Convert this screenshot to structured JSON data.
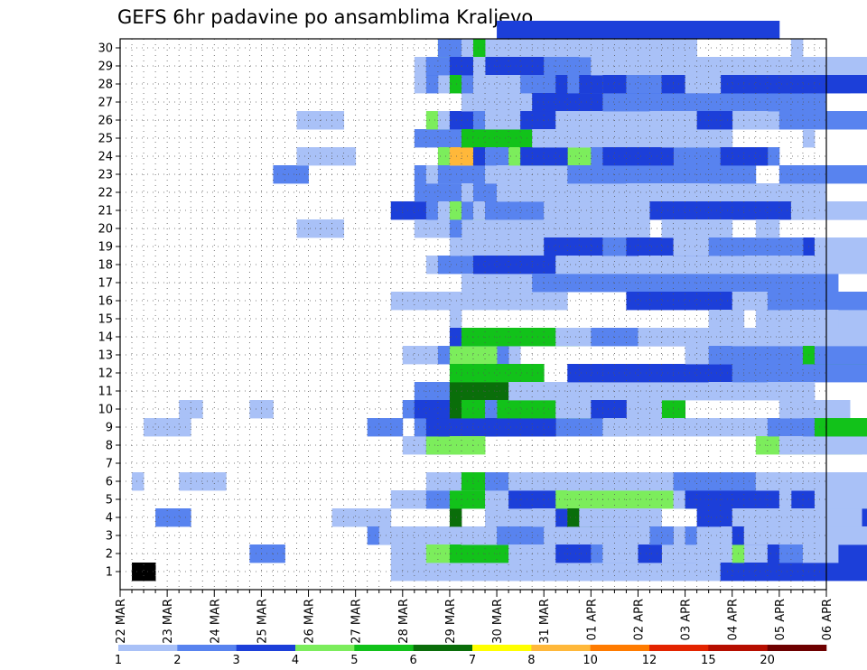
{
  "chart_data": {
    "type": "heatmap",
    "title": "GEFS 6hr padavine po ansamblima Kraljevo",
    "xlabel": "",
    "ylabel": "",
    "x_tick_labels": [
      "22 MAR",
      "23 MAR",
      "24 MAR",
      "25 MAR",
      "26 MAR",
      "27 MAR",
      "28 MAR",
      "29 MAR",
      "30 MAR",
      "31 MAR",
      "01 APR",
      "02 APR",
      "03 APR",
      "04 APR",
      "05 APR",
      "06 APR"
    ],
    "y_tick_labels": [
      "1",
      "2",
      "3",
      "4",
      "5",
      "6",
      "7",
      "8",
      "9",
      "10",
      "11",
      "12",
      "13",
      "14",
      "15",
      "16",
      "17",
      "18",
      "19",
      "20",
      "21",
      "22",
      "23",
      "24",
      "25",
      "26",
      "27",
      "28",
      "29",
      "30"
    ],
    "xlim": [
      0,
      60
    ],
    "ylim": [
      0,
      30.5
    ],
    "steps_per_day": 4,
    "grid": true,
    "colorbar": {
      "labels": [
        "1",
        "2",
        "3",
        "4",
        "5",
        "6",
        "7",
        "8",
        "10",
        "12",
        "15",
        "20"
      ],
      "colors": [
        "#a9c1f7",
        "#5883ef",
        "#1c3fd9",
        "#7ced5c",
        "#12c21a",
        "#0a6e0a",
        "#ffff00",
        "#ffb83a",
        "#ff7b00",
        "#e32400",
        "#b60e00",
        "#6e0000"
      ]
    },
    "cells": [
      [
        0,
        1,
        1,
        2
      ],
      [
        1,
        6,
        1,
        1
      ],
      [
        1,
        9,
        2,
        4
      ],
      [
        1,
        10,
        5,
        2
      ],
      [
        2,
        4,
        3,
        3
      ],
      [
        1,
        6,
        5,
        4
      ],
      [
        1,
        10,
        11,
        2
      ],
      [
        2,
        2,
        11,
        3
      ],
      [
        2,
        23,
        13,
        3
      ],
      [
        1,
        20,
        15,
        4
      ],
      [
        1,
        24,
        15,
        5
      ],
      [
        1,
        26,
        15,
        4
      ],
      [
        1,
        26,
        16,
        3
      ],
      [
        1,
        4,
        18,
        4
      ],
      [
        1,
        4,
        19,
        4
      ],
      [
        2,
        3,
        21,
        6
      ],
      [
        2,
        9,
        21,
        3
      ],
      [
        1,
        3,
        22,
        8
      ],
      [
        1,
        2,
        23,
        10
      ],
      [
        1,
        5,
        23,
        13
      ],
      [
        1,
        16,
        23,
        15
      ],
      [
        3,
        21,
        23,
        16
      ],
      [
        1,
        1,
        23,
        18
      ],
      [
        1,
        8,
        24,
        2
      ],
      [
        2,
        10,
        24,
        7
      ],
      [
        1,
        13,
        24,
        10
      ],
      [
        1,
        29,
        25,
        7
      ],
      [
        1,
        28,
        25,
        10
      ],
      [
        2,
        25,
        25,
        11
      ],
      [
        2,
        23,
        25,
        12
      ],
      [
        1,
        20,
        25,
        14
      ],
      [
        2,
        9,
        25,
        18
      ],
      [
        2,
        11,
        25,
        19
      ],
      [
        2,
        22,
        25,
        20
      ],
      [
        3,
        10,
        25,
        21
      ],
      [
        2,
        28,
        26,
        1
      ],
      [
        3,
        29,
        26,
        1
      ],
      [
        2,
        5,
        26,
        2
      ],
      [
        4,
        2,
        26,
        3
      ],
      [
        3,
        8,
        26,
        3
      ],
      [
        4,
        8,
        26,
        4
      ],
      [
        3,
        9,
        26,
        4
      ],
      [
        4,
        26,
        26,
        6
      ],
      [
        3,
        21,
        26,
        7
      ],
      [
        1,
        18,
        26,
        8
      ],
      [
        1,
        6,
        26,
        10
      ],
      [
        1,
        23,
        26,
        11
      ],
      [
        2,
        21,
        26,
        13
      ],
      [
        2,
        29,
        26,
        13
      ],
      [
        2,
        18,
        27,
        4
      ],
      [
        1,
        26,
        27,
        5
      ],
      [
        2,
        13,
        27,
        6
      ],
      [
        4,
        24,
        27,
        6
      ],
      [
        4,
        30,
        27,
        7
      ],
      [
        2,
        30,
        27,
        8
      ],
      [
        3,
        9,
        27,
        10
      ],
      [
        1,
        20,
        27,
        11
      ],
      [
        2,
        23,
        27,
        13
      ],
      [
        3,
        10,
        27,
        14
      ],
      [
        1,
        21,
        27,
        15
      ],
      [
        6,
        4,
        28,
        1
      ],
      [
        1,
        15,
        28,
        1
      ],
      [
        6,
        10,
        28,
        1
      ],
      [
        2,
        20,
        28,
        1
      ],
      [
        1,
        28,
        28,
        1
      ],
      [
        3,
        29,
        28,
        1
      ],
      [
        1,
        24,
        28,
        2
      ],
      [
        4,
        8,
        28,
        3
      ],
      [
        4,
        13,
        28,
        4
      ],
      [
        5,
        5,
        28,
        5
      ],
      [
        3,
        14,
        28,
        5
      ],
      [
        4,
        21,
        28,
        6
      ],
      [
        5,
        28,
        28,
        6
      ],
      [
        3,
        26,
        28,
        7
      ],
      [
        5,
        2,
        28,
        8
      ],
      [
        1,
        6,
        28,
        8
      ],
      [
        6,
        11,
        28,
        8
      ],
      [
        5,
        12,
        28,
        8
      ],
      [
        1,
        19,
        28,
        8
      ],
      [
        8,
        24,
        28,
        8
      ],
      [
        1,
        3,
        29,
        11
      ],
      [
        2,
        14,
        29,
        12
      ],
      [
        1,
        27,
        29,
        12
      ],
      [
        1,
        30,
        29,
        12
      ],
      [
        2,
        28,
        29,
        13
      ],
      [
        3,
        29,
        29,
        13
      ],
      [
        5,
        6,
        29,
        15
      ],
      [
        1,
        17,
        29,
        15
      ],
      [
        3,
        22,
        29,
        16
      ],
      [
        5,
        25,
        29,
        18
      ],
      [
        5,
        10,
        29,
        19
      ],
      [
        5,
        14,
        29,
        20
      ],
      [
        1,
        3,
        29,
        22
      ],
      [
        2,
        21,
        29,
        22
      ],
      [
        1,
        22,
        29,
        22
      ],
      [
        5,
        30,
        30,
        1
      ],
      [
        1,
        29,
        30,
        1
      ],
      [
        1,
        28,
        30,
        3
      ],
      [
        1,
        27,
        30,
        9
      ],
      [
        7,
        21,
        30,
        12
      ],
      [
        4,
        21,
        30,
        14
      ],
      [
        3,
        18,
        30,
        14
      ],
      [
        2,
        26,
        30,
        17
      ],
      [
        2,
        22,
        30,
        20
      ],
      [
        1,
        28,
        30,
        20
      ],
      [
        1,
        21,
        30,
        22
      ],
      [
        3,
        24,
        30,
        25
      ],
      [
        2,
        10,
        31,
        1
      ],
      [
        3,
        9,
        31,
        1
      ],
      [
        2,
        21,
        31,
        4
      ],
      [
        1,
        24,
        31,
        4
      ],
      [
        1,
        3,
        31,
        5
      ],
      [
        1,
        4,
        31,
        7
      ],
      [
        1,
        5,
        31,
        8
      ],
      [
        2,
        6,
        31,
        9
      ],
      [
        1,
        23,
        31,
        11
      ],
      [
        2,
        21,
        31,
        12
      ],
      [
        1,
        26,
        31,
        12
      ],
      [
        2,
        24,
        31,
        15
      ],
      [
        1,
        28,
        31,
        16
      ],
      [
        1,
        5,
        32,
        10
      ],
      [
        2,
        6,
        32,
        11
      ],
      [
        2,
        3,
        32,
        11
      ],
      [
        3,
        29,
        32,
        14
      ],
      [
        1,
        22,
        32,
        16
      ],
      [
        1,
        23,
        32,
        17
      ],
      [
        1,
        28,
        32,
        18
      ],
      [
        3,
        31,
        32,
        24
      ],
      [
        4,
        6,
        33,
        9
      ],
      [
        3,
        5,
        33,
        12
      ],
      [
        4,
        24,
        33,
        16
      ],
      [
        1,
        28,
        33,
        20
      ],
      [
        1,
        2,
        33,
        21
      ],
      [
        1,
        6,
        33,
        22
      ],
      [
        1,
        11,
        33,
        25
      ],
      [
        1,
        1,
        33,
        26
      ],
      [
        3,
        24,
        34,
        4
      ],
      [
        1,
        27,
        34,
        5
      ],
      [
        2,
        28,
        34,
        9
      ],
      [
        3,
        26,
        34,
        12
      ],
      [
        3,
        27,
        35,
        9
      ],
      [
        1,
        4,
        35,
        10
      ],
      [
        1,
        25,
        35,
        17
      ],
      [
        2,
        17,
        35,
        26
      ],
      [
        1,
        20,
        36,
        9
      ],
      [
        1,
        3,
        36,
        14
      ],
      [
        1,
        21,
        36,
        22
      ],
      [
        1,
        22,
        36,
        24
      ],
      [
        2,
        29,
        36,
        26
      ],
      [
        3,
        19,
        36,
        26
      ],
      [
        3,
        2,
        37,
        4
      ],
      [
        1,
        10,
        37,
        9
      ],
      [
        3,
        4,
        37,
        7
      ],
      [
        4,
        5,
        37,
        18
      ],
      [
        3,
        28,
        37,
        22
      ],
      [
        1,
        26,
        37,
        26
      ],
      [
        1,
        14,
        37,
        26
      ],
      [
        1,
        18,
        37,
        30
      ],
      [
        6,
        4,
        38,
        4
      ],
      [
        2,
        28,
        38,
        6
      ],
      [
        1,
        25,
        38,
        9
      ],
      [
        3,
        12,
        38,
        14
      ],
      [
        2,
        23,
        38,
        16
      ],
      [
        1,
        26,
        38,
        25
      ],
      [
        1,
        6,
        38,
        13
      ],
      [
        1,
        30,
        39,
        10
      ],
      [
        1,
        4,
        39,
        7
      ],
      [
        1,
        14,
        39,
        10
      ],
      [
        3,
        28,
        39,
        19
      ],
      [
        3,
        10,
        40,
        3
      ],
      [
        1,
        1,
        40,
        6
      ],
      [
        2,
        2,
        40,
        13
      ],
      [
        2,
        24,
        40,
        16
      ],
      [
        2,
        14,
        40,
        23
      ],
      [
        1,
        26,
        40,
        26
      ],
      [
        1,
        29,
        40,
        30
      ],
      [
        1,
        25,
        41,
        4
      ],
      [
        3,
        24,
        41,
        6
      ],
      [
        1,
        9,
        41,
        16
      ],
      [
        1,
        2,
        41,
        16
      ],
      [
        2,
        19,
        41,
        17
      ],
      [
        2,
        27,
        41,
        19
      ],
      [
        2,
        28,
        41,
        21
      ],
      [
        3,
        28,
        41,
        24
      ],
      [
        2,
        28,
        43,
        5
      ],
      [
        1,
        22,
        43,
        7
      ],
      [
        3,
        19,
        43,
        9
      ],
      [
        3,
        16,
        43,
        15
      ],
      [
        3,
        14,
        44,
        13
      ],
      [
        3,
        2,
        44,
        2
      ],
      [
        1,
        10,
        44,
        1
      ],
      [
        1,
        18,
        44,
        3
      ],
      [
        1,
        14,
        44,
        15
      ],
      [
        3,
        21,
        45,
        20
      ],
      [
        2,
        3,
        45,
        2
      ],
      [
        1,
        26,
        45,
        10
      ],
      [
        1,
        20,
        46,
        6
      ],
      [
        3,
        28,
        46,
        12
      ],
      [
        1,
        25,
        46,
        6
      ],
      [
        1,
        19,
        47,
        6
      ],
      [
        1,
        5,
        47,
        7
      ],
      [
        2,
        6,
        47,
        9
      ],
      [
        1,
        3,
        48,
        18
      ],
      [
        4,
        5,
        48,
        21
      ],
      [
        1,
        28,
        48,
        3
      ],
      [
        1,
        3,
        48,
        22
      ],
      [
        2,
        3,
        48,
        24
      ],
      [
        1,
        13,
        48,
        19
      ],
      [
        3,
        5,
        48,
        22
      ],
      [
        2,
        6,
        48,
        22
      ],
      [
        1,
        2,
        49,
        10
      ],
      [
        1,
        3,
        49,
        12
      ],
      [
        3,
        4,
        49,
        16
      ],
      [
        3,
        26,
        49,
        3
      ],
      [
        2,
        19,
        50,
        8
      ],
      [
        1,
        15,
        50,
        3
      ],
      [
        1,
        11,
        50,
        3
      ],
      [
        2,
        13,
        50,
        14
      ],
      [
        3,
        24,
        51,
        4
      ],
      [
        1,
        3,
        51,
        10
      ],
      [
        3,
        1,
        51,
        19
      ],
      [
        4,
        2,
        52,
        1
      ],
      [
        1,
        4,
        52,
        6
      ],
      [
        3,
        3,
        52,
        7
      ],
      [
        1,
        16,
        52,
        19
      ],
      [
        1,
        14,
        52,
        24
      ],
      [
        2,
        12,
        52,
        24
      ],
      [
        1,
        3,
        53,
        19
      ],
      [
        1,
        18,
        53,
        29
      ],
      [
        4,
        8,
        54,
        9
      ],
      [
        1,
        6,
        54,
        12
      ],
      [
        1,
        15,
        54,
        22
      ],
      [
        1,
        20,
        54,
        2
      ],
      [
        1,
        11,
        55,
        4
      ],
      [
        1,
        4,
        55,
        8
      ],
      [
        2,
        9,
        55,
        13
      ],
      [
        3,
        2,
        55,
        12
      ],
      [
        2,
        16,
        55,
        17
      ],
      [
        1,
        5,
        56,
        1
      ],
      [
        2,
        2,
        56,
        2
      ],
      [
        1,
        10,
        56,
        6
      ],
      [
        2,
        23,
        56,
        18
      ],
      [
        1,
        8,
        56,
        12
      ],
      [
        2,
        26,
        56,
        20
      ],
      [
        1,
        30,
        57,
        1
      ],
      [
        1,
        15,
        57,
        4
      ],
      [
        1,
        6,
        57,
        25
      ],
      [
        1,
        21,
        57,
        18
      ],
      [
        1,
        3,
        58,
        26
      ],
      [
        2,
        9,
        58,
        13
      ],
      [
        5,
        13,
        58,
        30
      ],
      [
        1,
        2,
        58,
        3
      ],
      [
        1,
        4,
        58,
        5
      ],
      [
        1,
        25,
        58,
        1
      ],
      [
        5,
        9,
        59,
        13
      ],
      [
        1,
        5,
        59,
        23
      ],
      [
        2,
        13,
        59,
        30
      ],
      [
        1,
        14,
        59,
        11
      ],
      [
        1,
        19,
        59,
        22
      ]
    ]
  }
}
